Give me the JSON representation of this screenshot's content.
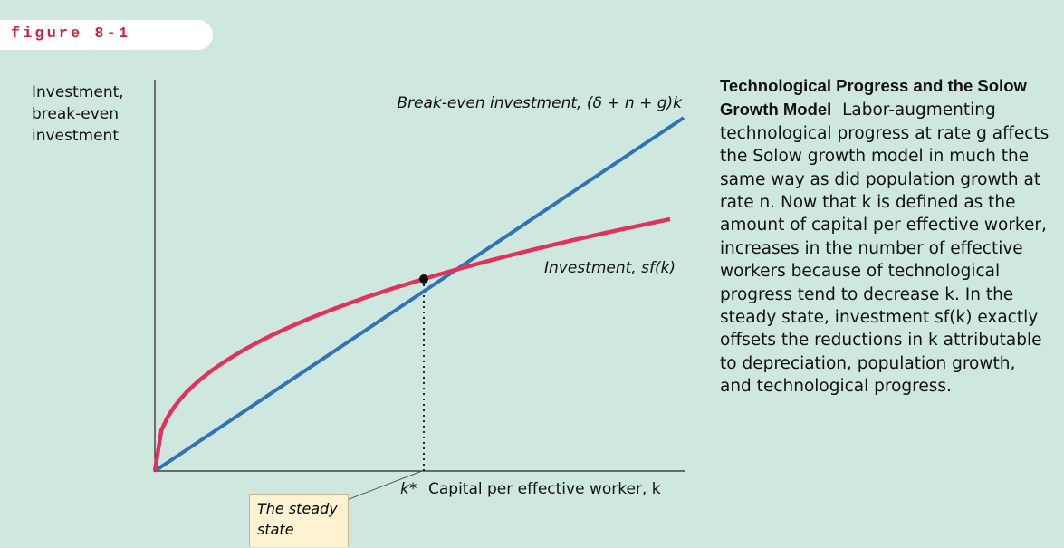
{
  "figure_label": "figure 8-1",
  "y_axis_label": "Investment, break-even investment",
  "x_axis_label": "Capital per effective worker, k",
  "steady_state_k": "k*",
  "breakeven_label": "Break-even investment, (δ + n + g)k",
  "investment_label": "Investment, sf(k)",
  "callout": "The steady state",
  "caption": {
    "title": "Technological Progress and the Solow Growth Model",
    "body": "Labor-augmenting technological progress at rate g affects the Solow growth model in much the same way as did population growth at rate n. Now that k is defined as the amount of capital per effective worker, increases in the number of effective workers because of technological progress tend to decrease k. In the steady state, investment sf(k) exactly offsets the reductions in k attributable to depreciation, population growth, and technological progress."
  }
}
